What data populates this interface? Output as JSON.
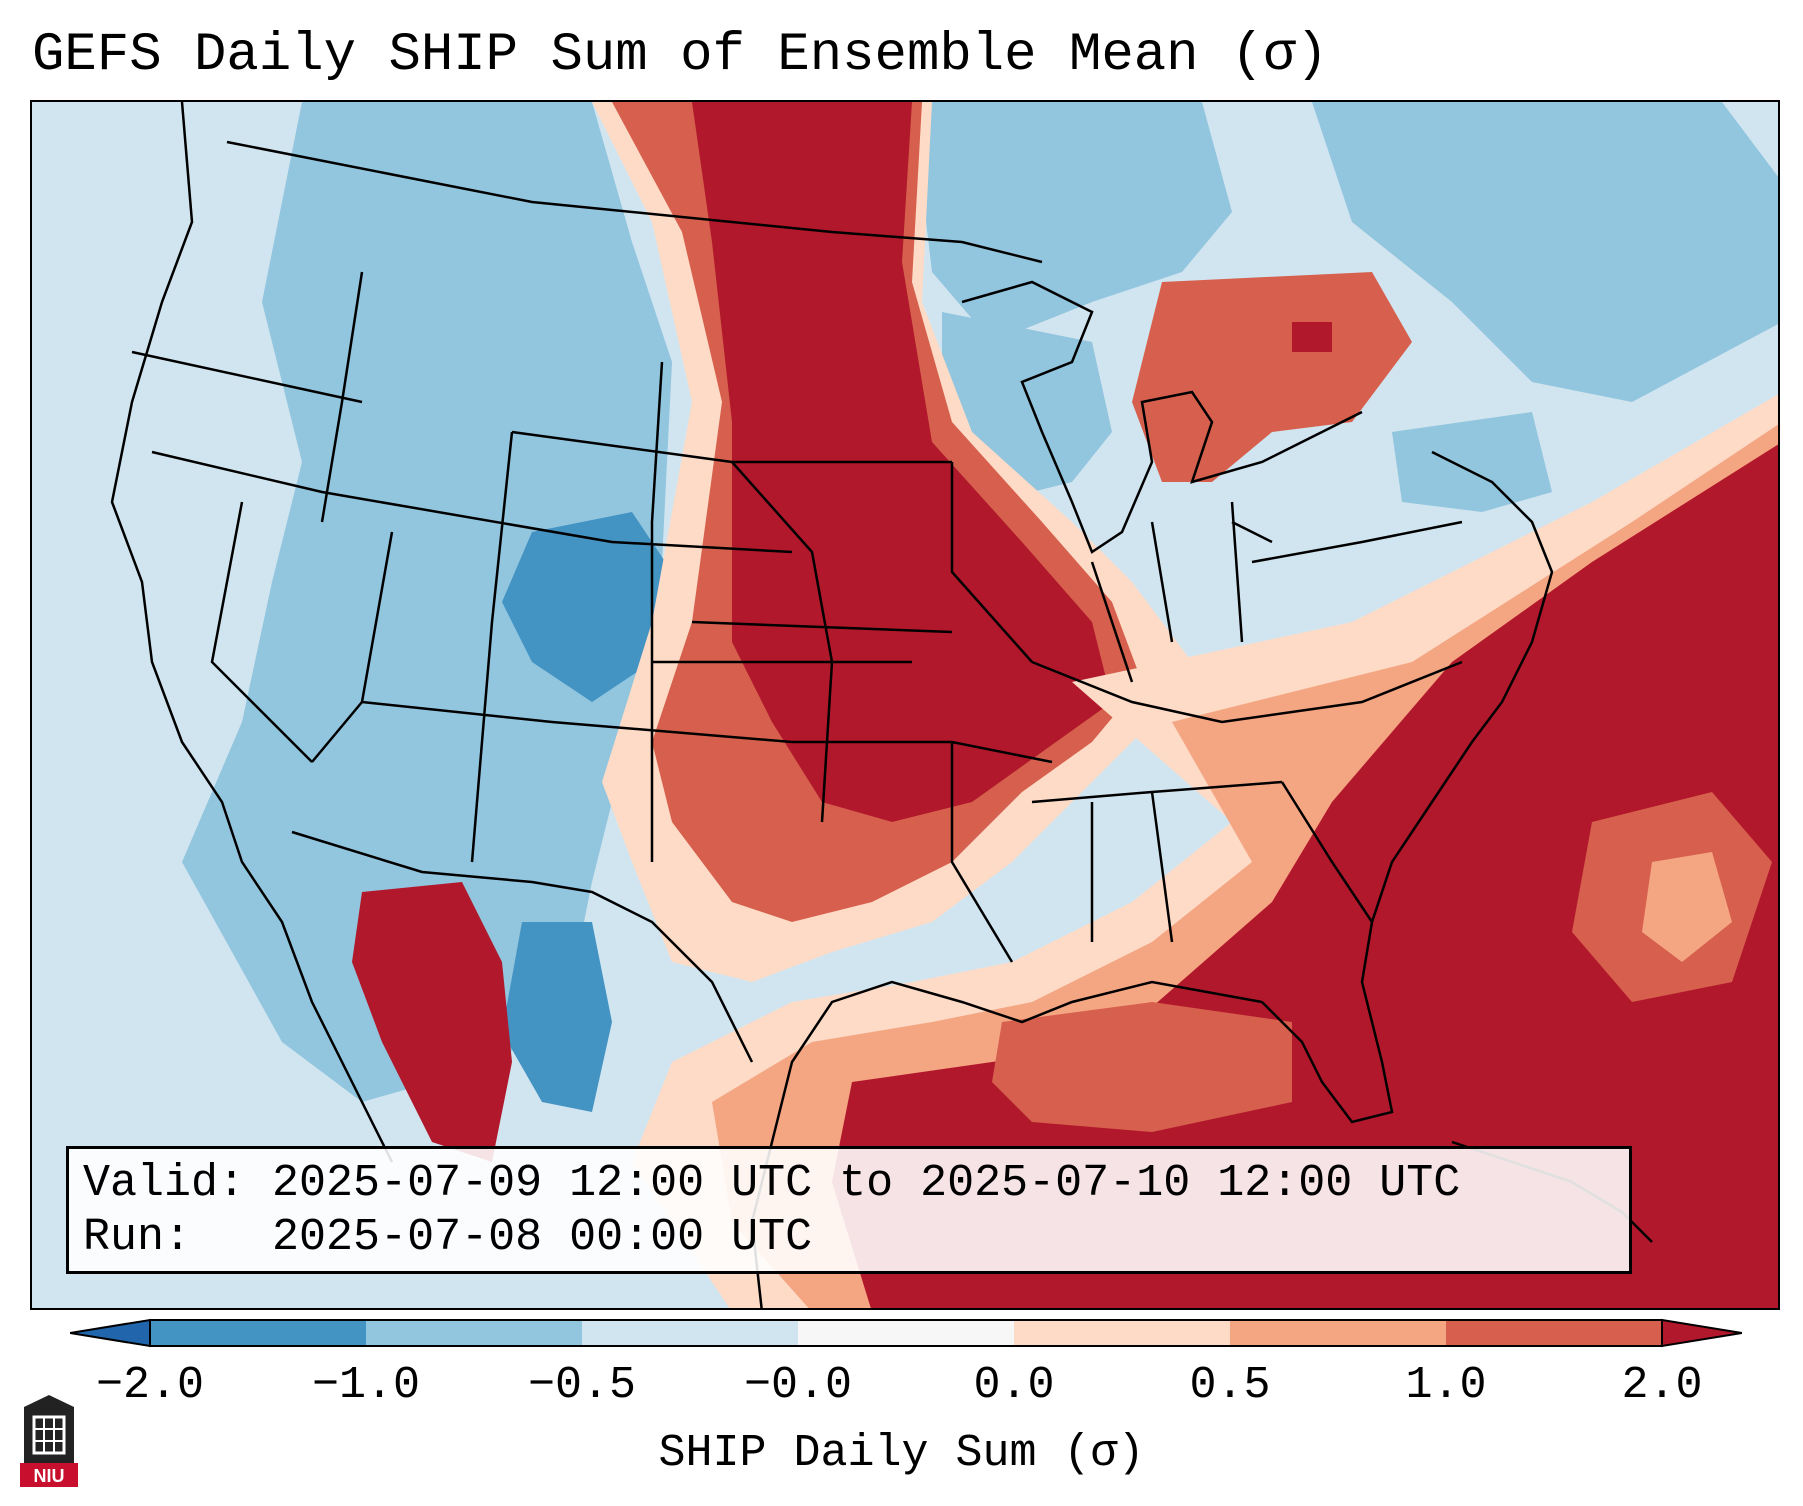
{
  "title": "GEFS Daily SHIP Sum of Ensemble Mean (σ)",
  "info": {
    "valid_label": "Valid:",
    "valid_value": "2025-07-09 12:00 UTC to 2025-07-10 12:00 UTC",
    "run_label": "Run:",
    "run_value": "2025-07-08 00:00 UTC"
  },
  "colorbar": {
    "label": "SHIP Daily Sum (σ)",
    "tick_labels": [
      "−2.0",
      "−1.0",
      "−0.5",
      "−0.0",
      "0.0",
      "0.5",
      "1.0",
      "2.0"
    ],
    "colors": {
      "under": "#2166ac",
      "c1": "#4393c3",
      "c2": "#92c5de",
      "c3": "#d1e5f0",
      "c4": "#f7f7f7",
      "c5": "#fddbc7",
      "c6": "#f4a582",
      "c7": "#d6604d",
      "over": "#b2182b"
    }
  },
  "logo": {
    "text": "NIU",
    "colors": {
      "tower": "#222222",
      "band": "#c8102e"
    }
  }
}
